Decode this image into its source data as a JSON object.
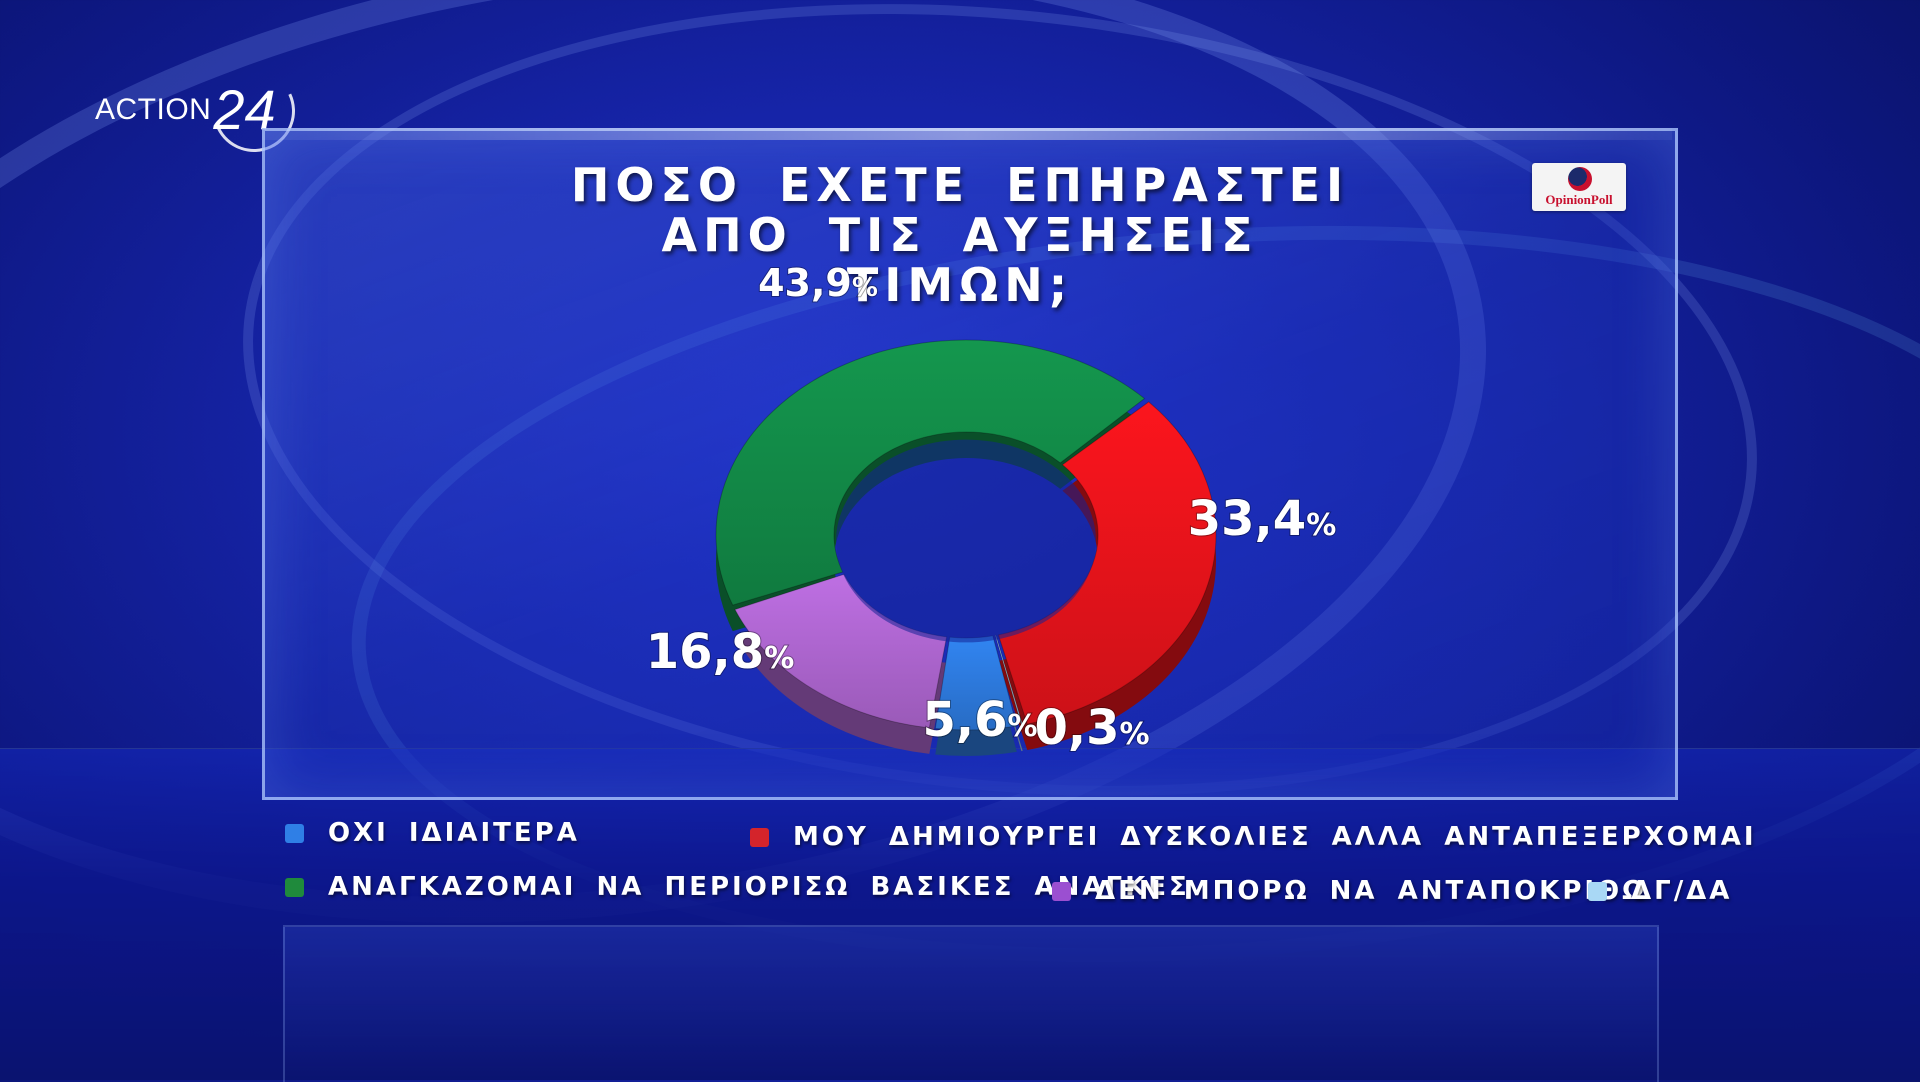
{
  "brand": {
    "channel_text": "ACTION",
    "channel_number": "24",
    "pollster": "OpinionPoll"
  },
  "title": {
    "line1": "ΠΟΣΟ ΕΧΕΤΕ ΕΠΗΡΑΣΤΕΙ",
    "line2": "ΑΠΟ ΤΙΣ ΑΥΞΗΣΕΙΣ ΤΙΜΩΝ;"
  },
  "colors": {
    "green": "#13904a",
    "red": "#f0141c",
    "purple": "#b56ad8",
    "blue": "#2f7fe6",
    "lightblue": "#a9d8f5"
  },
  "chart_data": {
    "type": "pie",
    "title": "ΠΟΣΟ ΕΧΕΤΕ ΕΠΗΡΑΣΤΕΙ ΑΠΟ ΤΙΣ ΑΥΞΗΣΕΙΣ ΤΙΜΩΝ;",
    "donut": true,
    "legend_position": "bottom",
    "slices": [
      {
        "label": "ΑΝΑΓΚΑΖΟΜΑΙ ΝΑ ΠΕΡΙΟΡΙΣΩ ΒΑΣΙΚΕΣ ΑΝΑΓΚΕΣ",
        "value": 43.9,
        "display": "43,9",
        "color": "#13904a"
      },
      {
        "label": "ΜΟΥ ΔΗΜΙΟΥΡΓΕΙ ΔΥΣΚΟΛΙΕΣ ΑΛΛΑ ΑΝΤΑΠΕΞΕΡΧΟΜΑΙ",
        "value": 33.4,
        "display": "33,4",
        "color": "#f0141c"
      },
      {
        "label": "ΔΓ/ΔΑ",
        "value": 0.3,
        "display": "0,3",
        "color": "#a9d8f5"
      },
      {
        "label": "ΟΧΙ ΙΔΙΑΙΤΕΡΑ",
        "value": 5.6,
        "display": "5,6",
        "color": "#2f7fe6"
      },
      {
        "label": "ΔΕΝ ΜΠΟΡΩ ΝΑ ΑΝΤΑΠΟΚΡΙΘΩ",
        "value": 16.8,
        "display": "16,8",
        "color": "#b56ad8"
      }
    ],
    "percent_symbol": "%"
  },
  "legend": [
    {
      "label": "ΟΧΙ ΙΔΙΑΙΤΕΡΑ",
      "color": "#2f7fe6"
    },
    {
      "label": "ΜΟΥ ΔΗΜΙΟΥΡΓΕΙ ΔΥΣΚΟΛΙΕΣ ΑΛΛΑ ΑΝΤΑΠΕΞΕΡΧΟΜΑΙ",
      "color": "#d4242b"
    },
    {
      "label": "ΑΝΑΓΚΑΖΟΜΑΙ ΝΑ ΠΕΡΙΟΡΙΣΩ ΒΑΣΙΚΕΣ ΑΝΑΓΚΕΣ",
      "color": "#1f8a3c"
    },
    {
      "label": "ΔΕΝ ΜΠΟΡΩ ΝΑ ΑΝΤΑΠΟΚΡΙΘΩ",
      "color": "#9b4fd1"
    },
    {
      "label": "ΔΓ/ΔΑ",
      "color": "#a9d8f5"
    }
  ]
}
